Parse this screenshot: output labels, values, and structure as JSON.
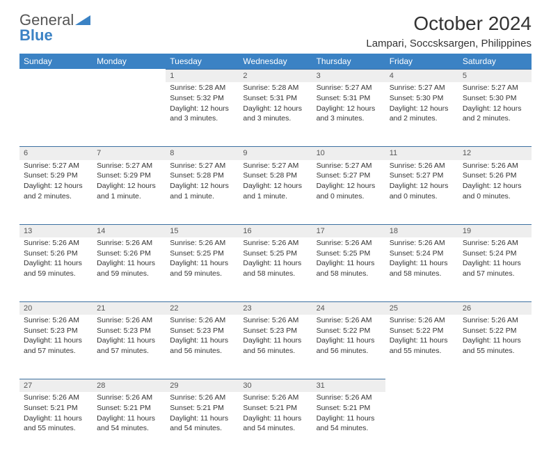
{
  "logo": {
    "general": "General",
    "blue": "Blue"
  },
  "title": "October 2024",
  "location": "Lampari, Soccsksargen, Philippines",
  "colors": {
    "header_bg": "#3b82c4",
    "header_fg": "#ffffff",
    "daynum_bg": "#eeeeee",
    "daynum_border": "#3b6fa0",
    "text": "#333333",
    "background": "#ffffff"
  },
  "typography": {
    "title_fontsize": 28,
    "location_fontsize": 15,
    "header_fontsize": 12,
    "cell_fontsize": 10.5
  },
  "weekdays": [
    "Sunday",
    "Monday",
    "Tuesday",
    "Wednesday",
    "Thursday",
    "Friday",
    "Saturday"
  ],
  "weeks": [
    [
      null,
      null,
      {
        "day": "1",
        "sunrise": "Sunrise: 5:28 AM",
        "sunset": "Sunset: 5:32 PM",
        "daylight1": "Daylight: 12 hours",
        "daylight2": "and 3 minutes."
      },
      {
        "day": "2",
        "sunrise": "Sunrise: 5:28 AM",
        "sunset": "Sunset: 5:31 PM",
        "daylight1": "Daylight: 12 hours",
        "daylight2": "and 3 minutes."
      },
      {
        "day": "3",
        "sunrise": "Sunrise: 5:27 AM",
        "sunset": "Sunset: 5:31 PM",
        "daylight1": "Daylight: 12 hours",
        "daylight2": "and 3 minutes."
      },
      {
        "day": "4",
        "sunrise": "Sunrise: 5:27 AM",
        "sunset": "Sunset: 5:30 PM",
        "daylight1": "Daylight: 12 hours",
        "daylight2": "and 2 minutes."
      },
      {
        "day": "5",
        "sunrise": "Sunrise: 5:27 AM",
        "sunset": "Sunset: 5:30 PM",
        "daylight1": "Daylight: 12 hours",
        "daylight2": "and 2 minutes."
      }
    ],
    [
      {
        "day": "6",
        "sunrise": "Sunrise: 5:27 AM",
        "sunset": "Sunset: 5:29 PM",
        "daylight1": "Daylight: 12 hours",
        "daylight2": "and 2 minutes."
      },
      {
        "day": "7",
        "sunrise": "Sunrise: 5:27 AM",
        "sunset": "Sunset: 5:29 PM",
        "daylight1": "Daylight: 12 hours",
        "daylight2": "and 1 minute."
      },
      {
        "day": "8",
        "sunrise": "Sunrise: 5:27 AM",
        "sunset": "Sunset: 5:28 PM",
        "daylight1": "Daylight: 12 hours",
        "daylight2": "and 1 minute."
      },
      {
        "day": "9",
        "sunrise": "Sunrise: 5:27 AM",
        "sunset": "Sunset: 5:28 PM",
        "daylight1": "Daylight: 12 hours",
        "daylight2": "and 1 minute."
      },
      {
        "day": "10",
        "sunrise": "Sunrise: 5:27 AM",
        "sunset": "Sunset: 5:27 PM",
        "daylight1": "Daylight: 12 hours",
        "daylight2": "and 0 minutes."
      },
      {
        "day": "11",
        "sunrise": "Sunrise: 5:26 AM",
        "sunset": "Sunset: 5:27 PM",
        "daylight1": "Daylight: 12 hours",
        "daylight2": "and 0 minutes."
      },
      {
        "day": "12",
        "sunrise": "Sunrise: 5:26 AM",
        "sunset": "Sunset: 5:26 PM",
        "daylight1": "Daylight: 12 hours",
        "daylight2": "and 0 minutes."
      }
    ],
    [
      {
        "day": "13",
        "sunrise": "Sunrise: 5:26 AM",
        "sunset": "Sunset: 5:26 PM",
        "daylight1": "Daylight: 11 hours",
        "daylight2": "and 59 minutes."
      },
      {
        "day": "14",
        "sunrise": "Sunrise: 5:26 AM",
        "sunset": "Sunset: 5:26 PM",
        "daylight1": "Daylight: 11 hours",
        "daylight2": "and 59 minutes."
      },
      {
        "day": "15",
        "sunrise": "Sunrise: 5:26 AM",
        "sunset": "Sunset: 5:25 PM",
        "daylight1": "Daylight: 11 hours",
        "daylight2": "and 59 minutes."
      },
      {
        "day": "16",
        "sunrise": "Sunrise: 5:26 AM",
        "sunset": "Sunset: 5:25 PM",
        "daylight1": "Daylight: 11 hours",
        "daylight2": "and 58 minutes."
      },
      {
        "day": "17",
        "sunrise": "Sunrise: 5:26 AM",
        "sunset": "Sunset: 5:25 PM",
        "daylight1": "Daylight: 11 hours",
        "daylight2": "and 58 minutes."
      },
      {
        "day": "18",
        "sunrise": "Sunrise: 5:26 AM",
        "sunset": "Sunset: 5:24 PM",
        "daylight1": "Daylight: 11 hours",
        "daylight2": "and 58 minutes."
      },
      {
        "day": "19",
        "sunrise": "Sunrise: 5:26 AM",
        "sunset": "Sunset: 5:24 PM",
        "daylight1": "Daylight: 11 hours",
        "daylight2": "and 57 minutes."
      }
    ],
    [
      {
        "day": "20",
        "sunrise": "Sunrise: 5:26 AM",
        "sunset": "Sunset: 5:23 PM",
        "daylight1": "Daylight: 11 hours",
        "daylight2": "and 57 minutes."
      },
      {
        "day": "21",
        "sunrise": "Sunrise: 5:26 AM",
        "sunset": "Sunset: 5:23 PM",
        "daylight1": "Daylight: 11 hours",
        "daylight2": "and 57 minutes."
      },
      {
        "day": "22",
        "sunrise": "Sunrise: 5:26 AM",
        "sunset": "Sunset: 5:23 PM",
        "daylight1": "Daylight: 11 hours",
        "daylight2": "and 56 minutes."
      },
      {
        "day": "23",
        "sunrise": "Sunrise: 5:26 AM",
        "sunset": "Sunset: 5:23 PM",
        "daylight1": "Daylight: 11 hours",
        "daylight2": "and 56 minutes."
      },
      {
        "day": "24",
        "sunrise": "Sunrise: 5:26 AM",
        "sunset": "Sunset: 5:22 PM",
        "daylight1": "Daylight: 11 hours",
        "daylight2": "and 56 minutes."
      },
      {
        "day": "25",
        "sunrise": "Sunrise: 5:26 AM",
        "sunset": "Sunset: 5:22 PM",
        "daylight1": "Daylight: 11 hours",
        "daylight2": "and 55 minutes."
      },
      {
        "day": "26",
        "sunrise": "Sunrise: 5:26 AM",
        "sunset": "Sunset: 5:22 PM",
        "daylight1": "Daylight: 11 hours",
        "daylight2": "and 55 minutes."
      }
    ],
    [
      {
        "day": "27",
        "sunrise": "Sunrise: 5:26 AM",
        "sunset": "Sunset: 5:21 PM",
        "daylight1": "Daylight: 11 hours",
        "daylight2": "and 55 minutes."
      },
      {
        "day": "28",
        "sunrise": "Sunrise: 5:26 AM",
        "sunset": "Sunset: 5:21 PM",
        "daylight1": "Daylight: 11 hours",
        "daylight2": "and 54 minutes."
      },
      {
        "day": "29",
        "sunrise": "Sunrise: 5:26 AM",
        "sunset": "Sunset: 5:21 PM",
        "daylight1": "Daylight: 11 hours",
        "daylight2": "and 54 minutes."
      },
      {
        "day": "30",
        "sunrise": "Sunrise: 5:26 AM",
        "sunset": "Sunset: 5:21 PM",
        "daylight1": "Daylight: 11 hours",
        "daylight2": "and 54 minutes."
      },
      {
        "day": "31",
        "sunrise": "Sunrise: 5:26 AM",
        "sunset": "Sunset: 5:21 PM",
        "daylight1": "Daylight: 11 hours",
        "daylight2": "and 54 minutes."
      },
      null,
      null
    ]
  ]
}
